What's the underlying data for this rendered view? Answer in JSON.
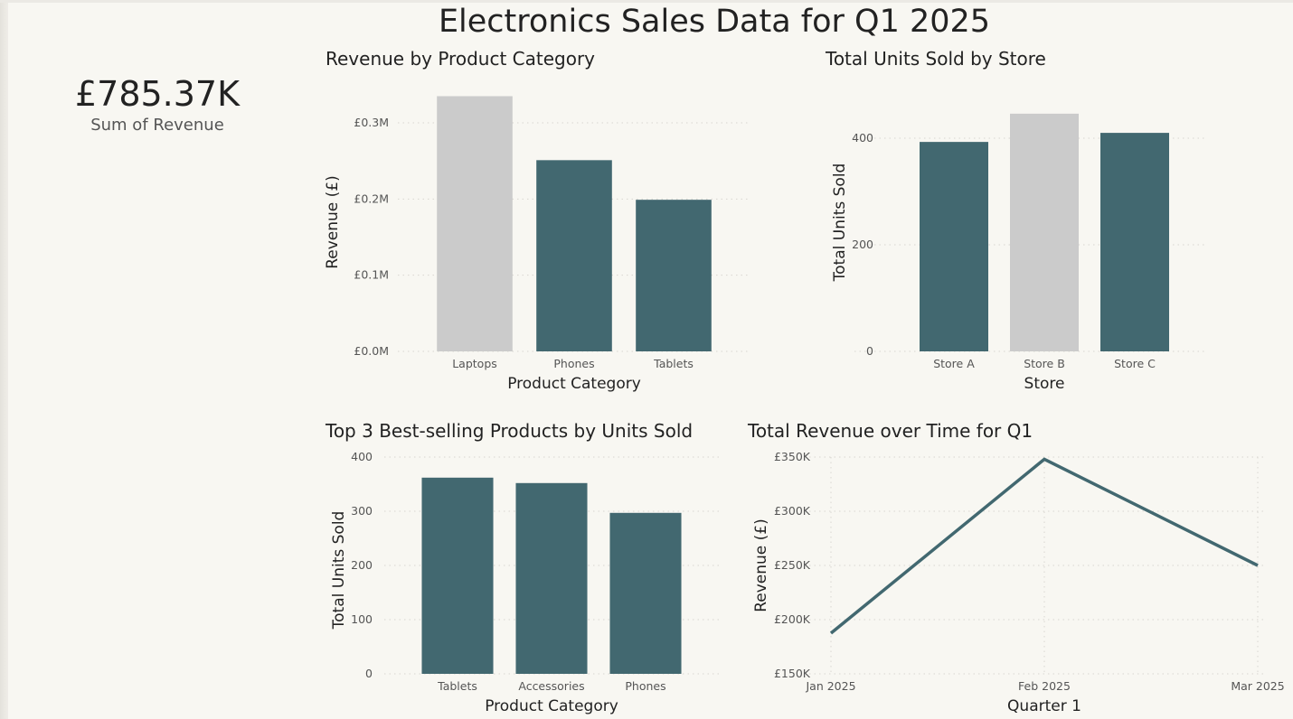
{
  "title": "Electronics Sales Data for Q1 2025",
  "kpi": {
    "value": "£785.37K",
    "label": "Sum of Revenue"
  },
  "colors": {
    "bar": "#426870",
    "highlight": "#cbcbcb",
    "background": "#f8f7f2",
    "grid": "#d8d6d0"
  },
  "chart_data": [
    {
      "id": "rev-cat",
      "type": "bar",
      "title": "Revenue by Product Category",
      "xlabel": "Product Category",
      "ylabel": "Revenue (£)",
      "categories": [
        "Laptops",
        "Phones",
        "Tablets"
      ],
      "values": [
        0.335,
        0.251,
        0.199
      ],
      "unit": "£M",
      "highlight": [
        "Laptops"
      ],
      "ylim": [
        0,
        0.3
      ],
      "yticks": [
        0,
        0.1,
        0.2,
        0.3
      ],
      "ytick_labels": [
        "£0.0M",
        "£0.1M",
        "£0.2M",
        "£0.3M"
      ],
      "grid": true
    },
    {
      "id": "units-store",
      "type": "bar",
      "title": "Total Units Sold by Store",
      "xlabel": "Store",
      "ylabel": "Total Units Sold",
      "categories": [
        "Store A",
        "Store B",
        "Store C"
      ],
      "values": [
        393,
        446,
        410
      ],
      "highlight": [
        "Store B"
      ],
      "ylim": [
        0,
        400
      ],
      "yticks": [
        0,
        200,
        400
      ],
      "ytick_labels": [
        "0",
        "200",
        "400"
      ],
      "grid": true
    },
    {
      "id": "top3",
      "type": "bar",
      "title": "Top 3 Best-selling Products by Units Sold",
      "xlabel": "Product Category",
      "ylabel": "Total Units Sold",
      "categories": [
        "Tablets",
        "Accessories",
        "Phones"
      ],
      "values": [
        362,
        352,
        297
      ],
      "highlight": [],
      "ylim": [
        0,
        400
      ],
      "yticks": [
        0,
        100,
        200,
        300,
        400
      ],
      "ytick_labels": [
        "0",
        "100",
        "200",
        "300",
        "400"
      ],
      "grid": true
    },
    {
      "id": "rev-time",
      "type": "line",
      "title": "Total Revenue over Time for Q1",
      "xlabel": "Quarter 1",
      "ylabel": "Revenue (£)",
      "x": [
        "Jan 2025",
        "Feb 2025",
        "Mar 2025"
      ],
      "values": [
        187500,
        348000,
        250000
      ],
      "ylim": [
        150000,
        350000
      ],
      "yticks": [
        150000,
        200000,
        250000,
        300000,
        350000
      ],
      "ytick_labels": [
        "£150K",
        "£200K",
        "£250K",
        "£300K",
        "£350K"
      ],
      "grid": true
    }
  ]
}
